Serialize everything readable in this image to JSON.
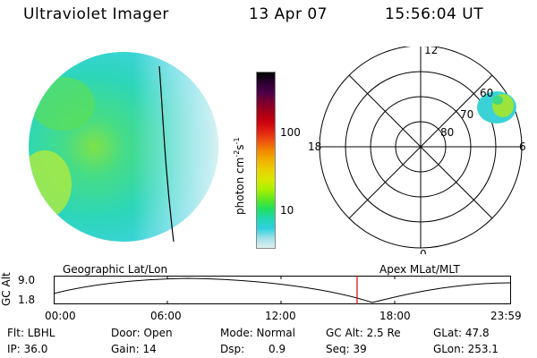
{
  "header": {
    "instrument": "Ultraviolet Imager",
    "date": "13 Apr 07",
    "time": "15:56:04 UT"
  },
  "colorbar": {
    "label": "photon cm",
    "label_exp1": "-2",
    "label_s": "s",
    "label_exp2": "-1",
    "ticks": [
      "100",
      "10"
    ],
    "colors": [
      "#000000",
      "#2a0030",
      "#4a0048",
      "#7a0030",
      "#a00018",
      "#c80010",
      "#e02010",
      "#f05010",
      "#f08800",
      "#f0b000",
      "#e8d000",
      "#d8e800",
      "#a8f000",
      "#60e820",
      "#20e060",
      "#20d8b0",
      "#30d0e0",
      "#a0e0e8",
      "#e0f0f0"
    ]
  },
  "polar": {
    "mlt_top": "12",
    "mlt_left": "18",
    "mlt_right": "6",
    "mlt_bottom": "0",
    "lat_60": "60",
    "lat_70": "70",
    "lat_80": "80"
  },
  "orbit": {
    "label_left": "Geographic Lat/Lon",
    "label_right": "Apex MLat/MLT",
    "ylabel": "GC Alt",
    "y_top": "9.0",
    "y_bottom": "1.8",
    "x_ticks": [
      "00:00",
      "06:00",
      "12:00",
      "18:00",
      "23:59"
    ]
  },
  "info": {
    "filter": "Flt: LBHL",
    "ip": "IP: 36.0",
    "door": "Door: Open",
    "gain": "Gain: 14",
    "mode": "Mode: Normal",
    "dsp_label": "Dsp:",
    "dsp_value": "0.9",
    "gc_alt": "GC Alt: 2.5 Re",
    "seq": "Seq: 39",
    "glat": "GLat:  47.8",
    "glon": "GLon: 253.1"
  }
}
